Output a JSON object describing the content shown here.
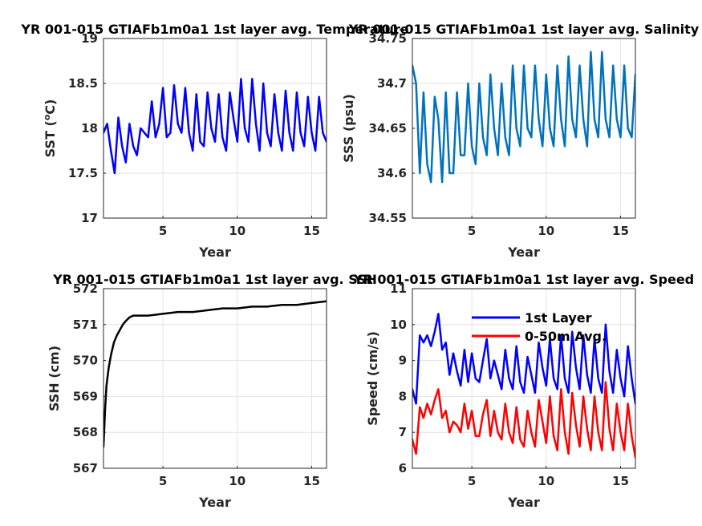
{
  "chart_data": [
    {
      "type": "line",
      "title": "YR 001-015 GTIAFb1m0a1 1st layer avg. Temperature",
      "xlabel": "Year",
      "ylabel": "SST (",
      "ylabel_sup": "o",
      "ylabel_tail": "C)",
      "xlim": [
        1,
        16
      ],
      "ylim": [
        17,
        19
      ],
      "xticks": [
        5,
        10,
        15
      ],
      "xtick_labels": [
        "5",
        "10",
        "15"
      ],
      "yticks": [
        17,
        17.5,
        18,
        18.5,
        19
      ],
      "ytick_labels": [
        "17",
        "17.5",
        "18",
        "18.5",
        "19"
      ],
      "grid": true,
      "series": [
        {
          "color": "#0000ff",
          "x": [
            1.0,
            1.25,
            1.5,
            1.75,
            2.0,
            2.25,
            2.5,
            2.75,
            3.0,
            3.25,
            3.5,
            3.75,
            4.0,
            4.25,
            4.5,
            4.75,
            5.0,
            5.25,
            5.5,
            5.75,
            6.0,
            6.25,
            6.5,
            6.75,
            7.0,
            7.25,
            7.5,
            7.75,
            8.0,
            8.25,
            8.5,
            8.75,
            9.0,
            9.25,
            9.5,
            9.75,
            10.0,
            10.25,
            10.5,
            10.75,
            11.0,
            11.25,
            11.5,
            11.75,
            12.0,
            12.25,
            12.5,
            12.75,
            13.0,
            13.25,
            13.5,
            13.75,
            14.0,
            14.25,
            14.5,
            14.75,
            15.0,
            15.25,
            15.5,
            15.75,
            16.0
          ],
          "y": [
            17.95,
            18.05,
            17.75,
            17.5,
            18.12,
            17.8,
            17.62,
            18.05,
            17.8,
            17.7,
            18.0,
            17.95,
            17.9,
            18.3,
            17.9,
            18.05,
            18.45,
            17.9,
            17.95,
            18.48,
            18.05,
            17.95,
            18.45,
            17.95,
            17.75,
            18.38,
            17.85,
            17.8,
            18.4,
            18.0,
            17.85,
            18.38,
            17.9,
            17.75,
            18.4,
            18.1,
            17.85,
            18.55,
            18.0,
            17.85,
            18.55,
            18.05,
            17.75,
            18.5,
            17.95,
            17.8,
            18.38,
            17.95,
            17.75,
            18.42,
            17.95,
            17.75,
            18.4,
            17.95,
            17.8,
            18.35,
            17.95,
            17.75,
            18.35,
            17.95,
            17.85
          ]
        }
      ]
    },
    {
      "type": "line",
      "title": "YR 001-015 GTIAFb1m0a1 1st layer avg. Salinity",
      "xlabel": "Year",
      "ylabel": "SSS (psu)",
      "xlim": [
        1,
        16
      ],
      "ylim": [
        34.55,
        34.75
      ],
      "xticks": [
        5,
        10,
        15
      ],
      "xtick_labels": [
        "5",
        "10",
        "15"
      ],
      "yticks": [
        34.55,
        34.6,
        34.65,
        34.7,
        34.75
      ],
      "ytick_labels": [
        "34.55",
        "34.6",
        "34.65",
        "34.7",
        "34.75"
      ],
      "grid": true,
      "series": [
        {
          "color": "#0072bd",
          "x": [
            1.0,
            1.25,
            1.5,
            1.75,
            2.0,
            2.25,
            2.5,
            2.75,
            3.0,
            3.25,
            3.5,
            3.75,
            4.0,
            4.25,
            4.5,
            4.75,
            5.0,
            5.25,
            5.5,
            5.75,
            6.0,
            6.25,
            6.5,
            6.75,
            7.0,
            7.25,
            7.5,
            7.75,
            8.0,
            8.25,
            8.5,
            8.75,
            9.0,
            9.25,
            9.5,
            9.75,
            10.0,
            10.25,
            10.5,
            10.75,
            11.0,
            11.25,
            11.5,
            11.75,
            12.0,
            12.25,
            12.5,
            12.75,
            13.0,
            13.25,
            13.5,
            13.75,
            14.0,
            14.25,
            14.5,
            14.75,
            15.0,
            15.25,
            15.5,
            15.75,
            16.0
          ],
          "y": [
            34.72,
            34.7,
            34.6,
            34.69,
            34.61,
            34.59,
            34.685,
            34.66,
            34.59,
            34.69,
            34.6,
            34.6,
            34.69,
            34.62,
            34.62,
            34.7,
            34.63,
            34.61,
            34.7,
            34.64,
            34.62,
            34.71,
            34.65,
            34.62,
            34.7,
            34.64,
            34.62,
            34.72,
            34.65,
            34.63,
            34.72,
            34.65,
            34.64,
            34.72,
            34.66,
            34.63,
            34.71,
            34.65,
            34.63,
            34.72,
            34.66,
            34.63,
            34.73,
            34.66,
            34.64,
            34.72,
            34.66,
            34.63,
            34.735,
            34.66,
            34.64,
            34.735,
            34.66,
            34.64,
            34.72,
            34.66,
            34.64,
            34.72,
            34.65,
            34.64,
            34.71
          ]
        }
      ]
    },
    {
      "type": "line",
      "title": "YR 001-015 GTIAFb1m0a1 1st layer avg. SSH",
      "xlabel": "Year",
      "ylabel": "SSH (cm)",
      "xlim": [
        1,
        16
      ],
      "ylim": [
        567,
        572
      ],
      "xticks": [
        5,
        10,
        15
      ],
      "xtick_labels": [
        "5",
        "10",
        "15"
      ],
      "yticks": [
        567,
        568,
        569,
        570,
        571,
        572
      ],
      "ytick_labels": [
        "567",
        "568",
        "569",
        "570",
        "571",
        "572"
      ],
      "grid": true,
      "series": [
        {
          "color": "#000000",
          "x": [
            1.0,
            1.1,
            1.2,
            1.35,
            1.5,
            1.7,
            1.9,
            2.1,
            2.3,
            2.5,
            2.75,
            3.0,
            3.5,
            4.0,
            5.0,
            6.0,
            7.0,
            8.0,
            9.0,
            10.0,
            11.0,
            12.0,
            13.0,
            14.0,
            15.0,
            16.0
          ],
          "y": [
            567.6,
            568.6,
            569.3,
            569.8,
            570.15,
            570.5,
            570.7,
            570.85,
            571.0,
            571.1,
            571.2,
            571.25,
            571.25,
            571.25,
            571.3,
            571.35,
            571.35,
            571.4,
            571.45,
            571.45,
            571.5,
            571.5,
            571.55,
            571.55,
            571.6,
            571.65
          ]
        }
      ]
    },
    {
      "type": "line",
      "title": "YR 001-015 GTIAFb1m0a1 1st layer avg. Speed",
      "xlabel": "Year",
      "ylabel": "Speed (cm/s)",
      "xlim": [
        1,
        16
      ],
      "ylim": [
        6,
        11
      ],
      "xticks": [
        5,
        10,
        15
      ],
      "xtick_labels": [
        "5",
        "10",
        "15"
      ],
      "yticks": [
        6,
        7,
        8,
        9,
        10,
        11
      ],
      "ytick_labels": [
        "6",
        "7",
        "8",
        "9",
        "10",
        "11"
      ],
      "grid": true,
      "legend": "top-right",
      "series": [
        {
          "name": "1st Layer",
          "color": "#0000ff",
          "x": [
            1.0,
            1.25,
            1.5,
            1.75,
            2.0,
            2.25,
            2.5,
            2.75,
            3.0,
            3.25,
            3.5,
            3.75,
            4.0,
            4.25,
            4.5,
            4.75,
            5.0,
            5.25,
            5.5,
            5.75,
            6.0,
            6.25,
            6.5,
            6.75,
            7.0,
            7.25,
            7.5,
            7.75,
            8.0,
            8.25,
            8.5,
            8.75,
            9.0,
            9.25,
            9.5,
            9.75,
            10.0,
            10.25,
            10.5,
            10.75,
            11.0,
            11.25,
            11.5,
            11.75,
            12.0,
            12.25,
            12.5,
            12.75,
            13.0,
            13.25,
            13.5,
            13.75,
            14.0,
            14.25,
            14.5,
            14.75,
            15.0,
            15.25,
            15.5,
            15.75,
            16.0
          ],
          "y": [
            8.2,
            7.8,
            9.7,
            9.5,
            9.7,
            9.4,
            9.8,
            10.3,
            9.3,
            9.5,
            8.6,
            9.2,
            8.7,
            8.3,
            9.3,
            8.4,
            9.2,
            8.5,
            8.4,
            9.0,
            9.6,
            8.5,
            9.0,
            8.6,
            8.2,
            9.3,
            8.5,
            8.2,
            9.4,
            8.4,
            8.1,
            9.1,
            8.6,
            8.1,
            9.5,
            8.8,
            8.3,
            9.6,
            8.5,
            8.2,
            9.7,
            8.5,
            8.1,
            9.8,
            8.8,
            8.2,
            9.7,
            8.6,
            8.1,
            9.6,
            8.5,
            8.1,
            10.0,
            8.7,
            8.1,
            9.3,
            8.5,
            8.0,
            9.4,
            8.5,
            7.8
          ]
        },
        {
          "name": "0-50m Avg.",
          "color": "#ff0000",
          "x": [
            1.0,
            1.25,
            1.5,
            1.75,
            2.0,
            2.25,
            2.5,
            2.75,
            3.0,
            3.25,
            3.5,
            3.75,
            4.0,
            4.25,
            4.5,
            4.75,
            5.0,
            5.25,
            5.5,
            5.75,
            6.0,
            6.25,
            6.5,
            6.75,
            7.0,
            7.25,
            7.5,
            7.75,
            8.0,
            8.25,
            8.5,
            8.75,
            9.0,
            9.25,
            9.5,
            9.75,
            10.0,
            10.25,
            10.5,
            10.75,
            11.0,
            11.25,
            11.5,
            11.75,
            12.0,
            12.25,
            12.5,
            12.75,
            13.0,
            13.25,
            13.5,
            13.75,
            14.0,
            14.25,
            14.5,
            14.75,
            15.0,
            15.25,
            15.5,
            15.75,
            16.0
          ],
          "y": [
            6.8,
            6.4,
            7.7,
            7.4,
            7.8,
            7.5,
            7.9,
            8.2,
            7.4,
            7.6,
            7.0,
            7.3,
            7.2,
            7.0,
            7.8,
            7.1,
            7.6,
            6.9,
            6.9,
            7.5,
            7.9,
            6.9,
            7.6,
            7.0,
            6.8,
            7.8,
            7.0,
            6.7,
            7.7,
            6.8,
            6.6,
            7.6,
            7.0,
            6.6,
            7.9,
            7.3,
            6.7,
            8.0,
            6.9,
            6.5,
            8.2,
            7.0,
            6.4,
            8.1,
            7.2,
            6.6,
            8.0,
            7.1,
            6.5,
            8.0,
            7.0,
            6.5,
            8.4,
            7.1,
            6.5,
            7.8,
            7.0,
            6.5,
            7.8,
            6.9,
            6.3
          ]
        }
      ]
    }
  ]
}
